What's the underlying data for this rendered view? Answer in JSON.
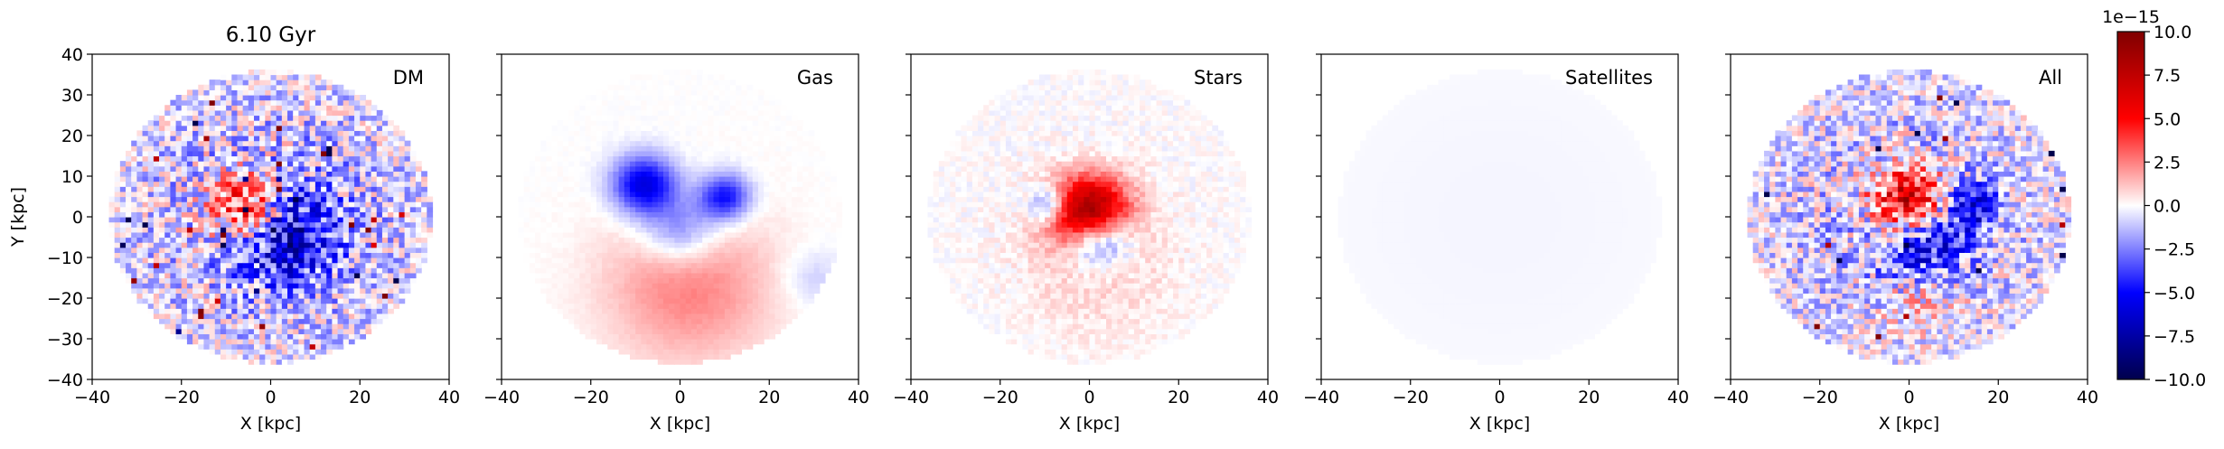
{
  "chart_data": {
    "type": "heatmap",
    "suptitle": "6.10 Gyr",
    "xlabel": "X [kpc]",
    "ylabel": "Y [kpc]",
    "xlim": [
      -40,
      40
    ],
    "ylim": [
      -40,
      40
    ],
    "xticks": [
      -40,
      -20,
      0,
      20,
      40
    ],
    "yticks": [
      -40,
      -30,
      -20,
      -10,
      0,
      10,
      20,
      30,
      40
    ],
    "tick_labels": {
      "x": [
        "−40",
        "−20",
        "0",
        "20",
        "40"
      ],
      "y": [
        "−40",
        "−30",
        "−20",
        "−10",
        "0",
        "10",
        "20",
        "30",
        "40"
      ]
    },
    "grid": false,
    "colormap": "seismic",
    "colormap_colors": [
      "#00004c",
      "#0000ff",
      "#ffffff",
      "#ff0000",
      "#800000"
    ],
    "color_scale_multiplier": "1e−15",
    "vmin": -10.0,
    "vmax": 10.0,
    "colorbar_ticks": [
      -10.0,
      -7.5,
      -5.0,
      -2.5,
      0.0,
      2.5,
      5.0,
      7.5,
      10.0
    ],
    "colorbar_tick_labels": [
      "−10.0",
      "−7.5",
      "−5.0",
      "−2.5",
      "0.0",
      "2.5",
      "5.0",
      "7.5",
      "10.0"
    ],
    "map_radius_kpc": 36,
    "panels": [
      {
        "label": "DM",
        "features": [
          {
            "x": -5,
            "y": 2,
            "r": 6,
            "value": 7
          },
          {
            "x": 3,
            "y": -4,
            "r": 8,
            "value": -6
          },
          {
            "x": 0,
            "y": 0,
            "r": 28,
            "value": -1.2
          }
        ]
      },
      {
        "label": "Gas",
        "features": [
          {
            "x": -8,
            "y": 8,
            "r": 5,
            "value": -6
          },
          {
            "x": 10,
            "y": 5,
            "r": 4,
            "value": -5
          },
          {
            "x": 0,
            "y": -3,
            "r": 6,
            "value": -3
          },
          {
            "x": 2,
            "y": -17,
            "r": 13,
            "value": 2.5
          },
          {
            "x": 30,
            "y": -15,
            "r": 5,
            "value": -1
          }
        ]
      },
      {
        "label": "Stars",
        "features": [
          {
            "x": 0,
            "y": 1,
            "r": 6,
            "value": 10
          },
          {
            "x": 2,
            "y": -5,
            "r": 5,
            "value": -6
          },
          {
            "x": -9,
            "y": 3,
            "r": 3,
            "value": -4
          },
          {
            "x": 2,
            "y": -12,
            "r": 12,
            "value": 1
          }
        ]
      },
      {
        "label": "Satellites",
        "features": [
          {
            "x": 0,
            "y": 0,
            "r": 36,
            "value": -0.2
          }
        ]
      },
      {
        "label": "All",
        "features": [
          {
            "x": 0,
            "y": 3,
            "r": 6,
            "value": 9
          },
          {
            "x": 3,
            "y": -6,
            "r": 7,
            "value": -6
          },
          {
            "x": 14,
            "y": 3,
            "r": 4,
            "value": -5
          },
          {
            "x": 3,
            "y": -18,
            "r": 7,
            "value": 2
          },
          {
            "x": 0,
            "y": 0,
            "r": 28,
            "value": -1
          }
        ]
      }
    ]
  }
}
